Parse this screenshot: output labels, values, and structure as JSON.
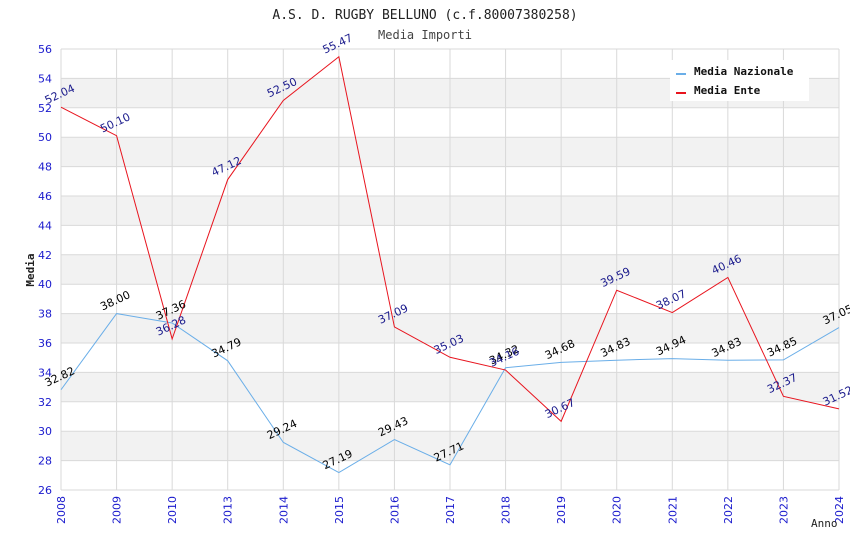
{
  "chart_data": {
    "type": "line",
    "title": "A.S. D. RUGBY BELLUNO (c.f.80007380258)",
    "subtitle": "Media Importi",
    "xlabel": "Anno",
    "ylabel": "Media",
    "ylim": [
      26,
      56
    ],
    "yticks": [
      "26",
      "28",
      "30",
      "32",
      "34",
      "36",
      "38",
      "40",
      "42",
      "44",
      "46",
      "48",
      "50",
      "52",
      "54",
      "56"
    ],
    "categories": [
      "2008",
      "2009",
      "2010",
      "2013",
      "2014",
      "2015",
      "2016",
      "2017",
      "2018",
      "2019",
      "2020",
      "2021",
      "2022",
      "2023",
      "2024"
    ],
    "legend_position": "top-right",
    "series": [
      {
        "name": "Media Nazionale",
        "color": "#6aaee8",
        "label_color": "#000000",
        "values": [
          32.82,
          38.0,
          37.36,
          34.79,
          29.24,
          27.19,
          29.43,
          27.71,
          34.32,
          34.68,
          34.83,
          34.94,
          34.83,
          34.85,
          37.05
        ],
        "labels": [
          "32.82",
          "38.00",
          "37.36",
          "34.79",
          "29.24",
          "27.19",
          "29.43",
          "27.71",
          "34.32",
          "34.68",
          "34.83",
          "34.94",
          "34.83",
          "34.85",
          "37.05"
        ]
      },
      {
        "name": "Media Ente",
        "color": "#e8141e",
        "label_color": "#1a1a8c",
        "values": [
          52.04,
          50.1,
          36.28,
          47.12,
          52.5,
          55.47,
          37.09,
          35.03,
          34.16,
          30.67,
          39.59,
          38.07,
          40.46,
          32.37,
          31.52
        ],
        "labels": [
          "52.04",
          "50.10",
          "36.28",
          "47.12",
          "52.50",
          "55.47",
          "37.09",
          "35.03",
          "34.16",
          "30.67",
          "39.59",
          "38.07",
          "40.46",
          "32.37",
          "31.52"
        ]
      }
    ]
  }
}
